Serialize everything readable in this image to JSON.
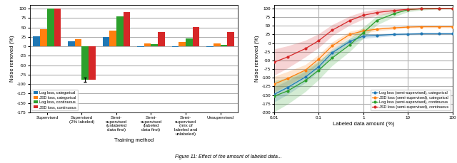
{
  "chart_data": [
    {
      "type": "bar",
      "xlabel": "Training method",
      "ylabel": "Noise removed (%)",
      "categories": [
        "Supervised",
        "Supervised\n(2% labeled)",
        "Semi-\nsupervised\n(unlabeled\ndata first)",
        "Semi-\nsupervised\n(labeled\ndata first)",
        "Semi-\nsupervised\n(mix of\nlabeled and\nunlabeled)",
        "Unsupervised"
      ],
      "series": [
        {
          "name": "Log loss, categorical",
          "values": [
            27,
            14,
            24,
            -2,
            -2,
            -2
          ]
        },
        {
          "name": "JSD loss, categorical",
          "values": [
            46,
            20,
            41,
            8,
            11,
            8
          ]
        },
        {
          "name": "Log loss, continuous",
          "values": [
            100,
            -88,
            80,
            6,
            21,
            4
          ],
          "errors": [
            null,
            6,
            null,
            null,
            null,
            null
          ]
        },
        {
          "name": "JSD loss, continuous",
          "values": [
            100,
            -88,
            90,
            38,
            52,
            38
          ]
        }
      ],
      "ylim": [
        -175,
        110
      ],
      "yticks": [
        -175,
        -150,
        -125,
        -100,
        -75,
        -50,
        -25,
        0,
        25,
        50,
        75,
        100
      ],
      "grid": "y",
      "legend": "lower left"
    },
    {
      "type": "line",
      "xlabel": "Labeled data amount (%)",
      "ylabel": "Noise removed (%)",
      "x": [
        0.01,
        0.02,
        0.05,
        0.1,
        0.2,
        0.5,
        1.0,
        2.0,
        5.0,
        10.0,
        20.0,
        50.0,
        100.0
      ],
      "log": "x",
      "series": [
        {
          "name": "Log loss (semi-supervised), categorical",
          "marker": "o",
          "values": [
            -148,
            -128,
            -98,
            -68,
            -28,
            5,
            20,
            22,
            25,
            26,
            27,
            27,
            27
          ],
          "errors": [
            22,
            20,
            16,
            13,
            11,
            9,
            7,
            5,
            4,
            3,
            3,
            3,
            3
          ]
        },
        {
          "name": "JSD loss (semi-supervised), categorical",
          "marker": "o",
          "values": [
            -118,
            -102,
            -78,
            -46,
            -8,
            25,
            35,
            40,
            44,
            46,
            47,
            47,
            47
          ],
          "errors": [
            22,
            20,
            16,
            13,
            11,
            9,
            7,
            5,
            4,
            3,
            3,
            3,
            3
          ]
        },
        {
          "name": "Log loss (semi-supervised), continuous",
          "marker": "o",
          "values": [
            -153,
            -138,
            -108,
            -78,
            -43,
            -5,
            30,
            65,
            85,
            96,
            99,
            100,
            100
          ],
          "errors": [
            45,
            38,
            32,
            27,
            22,
            19,
            16,
            13,
            9,
            6,
            4,
            2,
            2
          ]
        },
        {
          "name": "JSD loss (semi-supervised), continuous",
          "marker": "o",
          "values": [
            -55,
            -40,
            -16,
            7,
            37,
            65,
            80,
            88,
            94,
            97,
            99,
            100,
            100
          ],
          "errors": [
            38,
            32,
            24,
            20,
            16,
            13,
            11,
            9,
            6,
            3,
            2,
            2,
            2
          ]
        }
      ],
      "xlim": [
        0.01,
        100
      ],
      "xticks": [
        0.01,
        0.1,
        1,
        10,
        100
      ],
      "ylim": [
        -200,
        110
      ],
      "yticks": [
        -200,
        -175,
        -150,
        -125,
        -100,
        -75,
        -50,
        -25,
        0,
        25,
        50,
        75,
        100
      ],
      "grid": true,
      "legend": "lower right"
    }
  ],
  "caption": "Figure 11: Effect of the amount of labeled data..."
}
